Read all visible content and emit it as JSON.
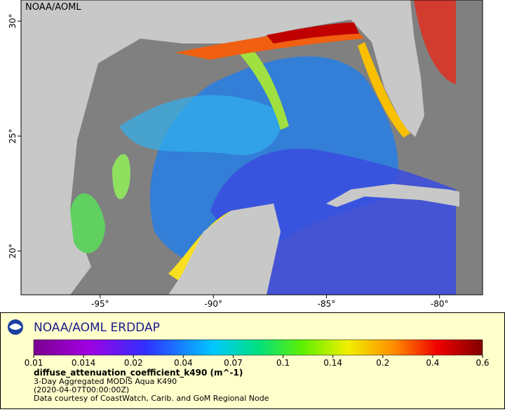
{
  "map": {
    "watermark": "NOAA/AOML",
    "xlim": [
      -98.5,
      -78.1
    ],
    "ylim": [
      18.1,
      30.92
    ],
    "xticks": [
      {
        "value": -95,
        "label": "-95°"
      },
      {
        "value": -90,
        "label": "-90°"
      },
      {
        "value": -85,
        "label": "-85°"
      },
      {
        "value": -80,
        "label": "-80°"
      }
    ],
    "yticks": [
      {
        "value": 20,
        "label": "20°"
      },
      {
        "value": 25,
        "label": "25°"
      },
      {
        "value": 30,
        "label": "30°"
      }
    ]
  },
  "legend": {
    "title": "NOAA/AOML ERDDAP",
    "colorbar_ticks": [
      0.01,
      0.014,
      0.02,
      0.04,
      0.07,
      0.1,
      0.14,
      0.2,
      0.4,
      0.6
    ],
    "variable": "diffuse_attenuation_coefficient_k490 (m^-1)",
    "lines": [
      "3-Day Aggregated MODIS Aqua K490",
      "(2020-04-07T00:00:00Z)",
      "Data courtesy of CoastWatch, Carib. and GoM Regional Node"
    ]
  }
}
